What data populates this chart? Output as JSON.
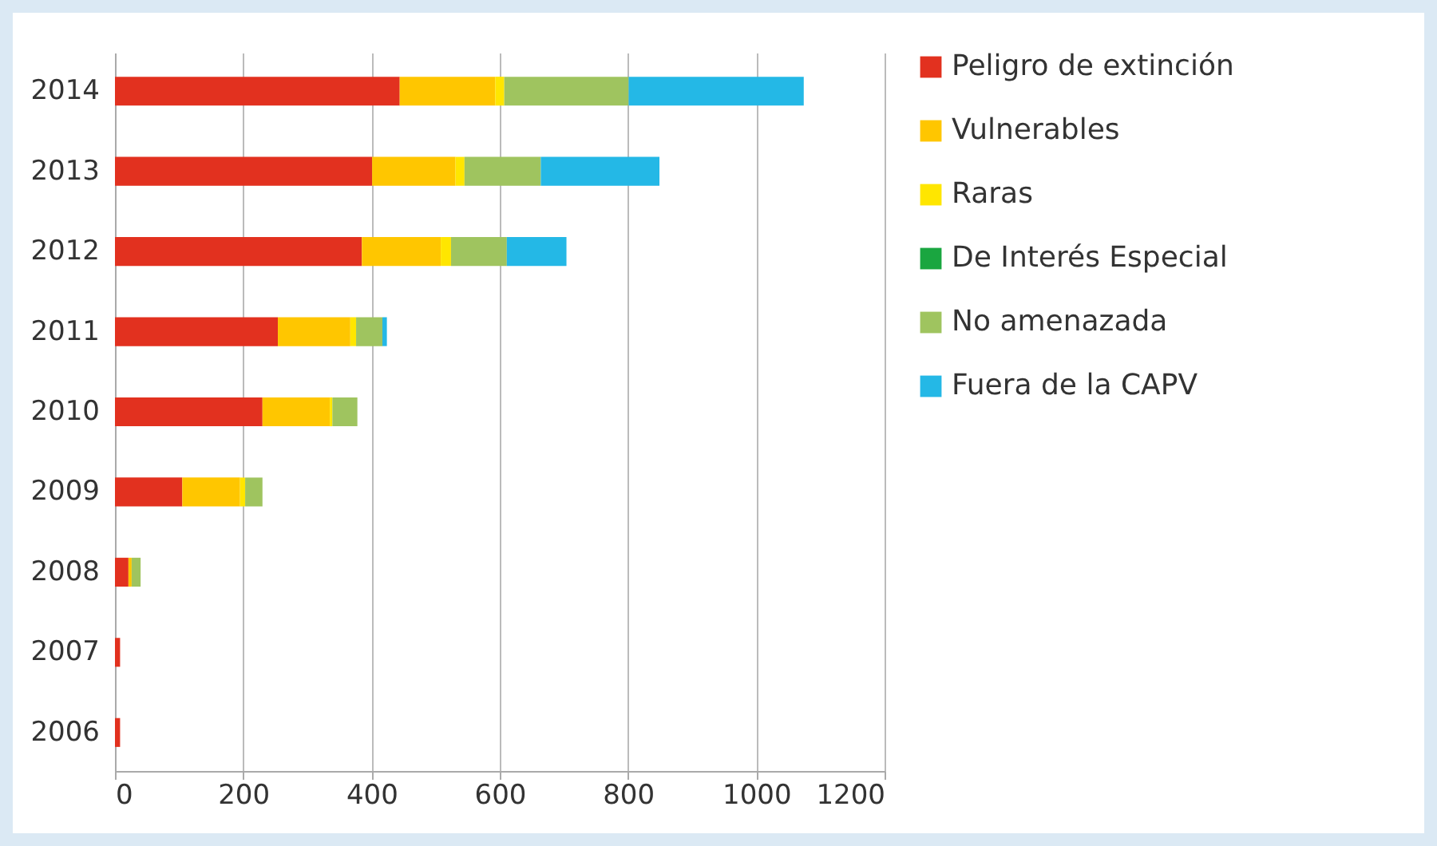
{
  "chart_data": {
    "type": "bar",
    "orientation": "horizontal",
    "stacked": true,
    "categories": [
      "2014",
      "2013",
      "2012",
      "2011",
      "2010",
      "2009",
      "2008",
      "2007",
      "2006"
    ],
    "series": [
      {
        "name": "Peligro de extinción",
        "color": "#e2311f",
        "values": [
          444,
          401,
          385,
          254,
          230,
          105,
          21,
          8,
          8
        ]
      },
      {
        "name": "Vulnerables",
        "color": "#ffc600",
        "values": [
          149,
          130,
          123,
          113,
          105,
          90,
          5,
          0,
          0
        ]
      },
      {
        "name": "Raras",
        "color": "#ffe600",
        "values": [
          14,
          14,
          16,
          9,
          4,
          8,
          0,
          0,
          0
        ]
      },
      {
        "name": "De Interés Especial",
        "color": "#1aa640",
        "values": [
          0,
          0,
          0,
          0,
          0,
          0,
          0,
          0,
          0
        ]
      },
      {
        "name": "No amenazada",
        "color": "#9fc45f",
        "values": [
          194,
          119,
          87,
          41,
          39,
          27,
          14,
          0,
          0
        ]
      },
      {
        "name": "Fuera de la CAPV",
        "color": "#24b8e6",
        "values": [
          273,
          185,
          93,
          7,
          0,
          0,
          0,
          0,
          0
        ]
      }
    ],
    "xlim": [
      0,
      1200
    ],
    "xticks": [
      0,
      200,
      400,
      600,
      800,
      1000,
      1200
    ],
    "grid": "x",
    "legend": "right"
  }
}
